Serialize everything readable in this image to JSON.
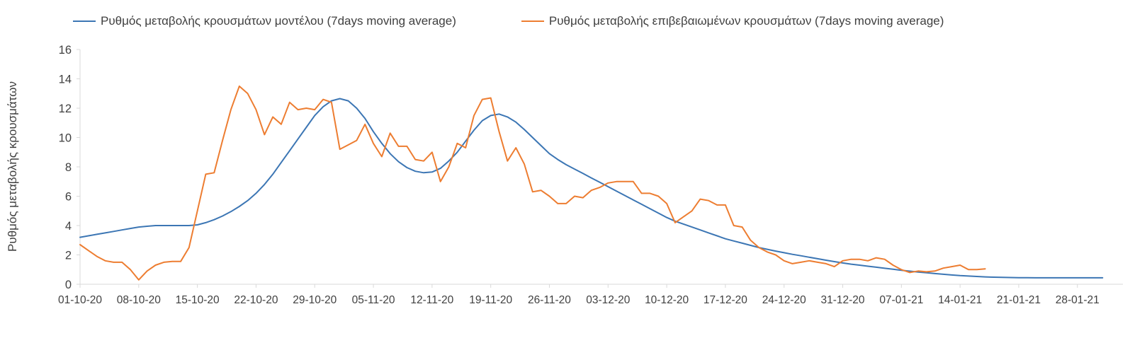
{
  "chart_data": {
    "type": "line",
    "title": "",
    "xlabel": "",
    "ylabel": "Ρυθμός μεταβολής κρουσμάτων",
    "ylim": [
      0,
      16
    ],
    "yticks": [
      0,
      2,
      4,
      6,
      8,
      10,
      12,
      14,
      16
    ],
    "grid": false,
    "legend_position": "top",
    "x_tick_interval_days": 7,
    "x_tick_labels": [
      "01-10-20",
      "08-10-20",
      "15-10-20",
      "22-10-20",
      "29-10-20",
      "05-11-20",
      "12-11-20",
      "19-11-20",
      "26-11-20",
      "03-12-20",
      "10-12-20",
      "17-12-20",
      "24-12-20",
      "31-12-20",
      "07-01-21",
      "14-01-21",
      "21-01-21",
      "28-01-21"
    ],
    "colors": {
      "axis": "#d9d9d9",
      "text": "#404040"
    },
    "series": [
      {
        "key": "model",
        "name": "Ρυθμός μεταβολής κρουσμάτων μοντέλου (7days moving average)",
        "color": "#3c76b4",
        "start_day": 0,
        "values": [
          3.2,
          3.3,
          3.4,
          3.5,
          3.6,
          3.7,
          3.8,
          3.9,
          3.95,
          4.0,
          4.0,
          4.0,
          4.0,
          4.0,
          4.05,
          4.2,
          4.4,
          4.65,
          4.95,
          5.3,
          5.7,
          6.2,
          6.8,
          7.5,
          8.3,
          9.1,
          9.9,
          10.7,
          11.5,
          12.1,
          12.5,
          12.65,
          12.5,
          12.0,
          11.3,
          10.4,
          9.6,
          8.9,
          8.35,
          7.95,
          7.7,
          7.6,
          7.65,
          7.9,
          8.4,
          9.0,
          9.75,
          10.5,
          11.15,
          11.5,
          11.6,
          11.4,
          11.05,
          10.55,
          10.0,
          9.45,
          8.9,
          8.5,
          8.15,
          7.85,
          7.55,
          7.25,
          6.95,
          6.65,
          6.35,
          6.05,
          5.75,
          5.45,
          5.15,
          4.85,
          4.55,
          4.3,
          4.1,
          3.9,
          3.7,
          3.5,
          3.3,
          3.1,
          2.95,
          2.8,
          2.65,
          2.5,
          2.38,
          2.26,
          2.15,
          2.04,
          1.94,
          1.84,
          1.74,
          1.64,
          1.54,
          1.45,
          1.37,
          1.3,
          1.23,
          1.16,
          1.09,
          1.02,
          0.95,
          0.89,
          0.83,
          0.78,
          0.73,
          0.68,
          0.63,
          0.59,
          0.56,
          0.53,
          0.5,
          0.48,
          0.47,
          0.46,
          0.45,
          0.45,
          0.44,
          0.44,
          0.44,
          0.44,
          0.44,
          0.44,
          0.44,
          0.44,
          0.44
        ]
      },
      {
        "key": "confirmed",
        "name": "Ρυθμός μεταβολής επιβεβαιωμένων κρουσμάτων (7days moving average)",
        "color": "#ed7d31",
        "start_day": 0,
        "values": [
          2.7,
          2.3,
          1.9,
          1.6,
          1.5,
          1.5,
          1.0,
          0.3,
          0.9,
          1.3,
          1.5,
          1.55,
          1.55,
          2.5,
          5.0,
          7.5,
          7.6,
          9.8,
          11.9,
          13.5,
          13.0,
          11.9,
          10.2,
          11.4,
          10.9,
          12.4,
          11.9,
          12.0,
          11.9,
          12.6,
          12.4,
          9.2,
          9.5,
          9.8,
          10.9,
          9.6,
          8.7,
          10.3,
          9.4,
          9.4,
          8.5,
          8.4,
          9.0,
          7.0,
          8.0,
          9.6,
          9.3,
          11.5,
          12.6,
          12.7,
          10.4,
          8.4,
          9.3,
          8.2,
          6.3,
          6.4,
          6.0,
          5.5,
          5.5,
          6.0,
          5.9,
          6.4,
          6.6,
          6.9,
          7.0,
          7.0,
          7.0,
          6.2,
          6.2,
          6.0,
          5.5,
          4.2,
          4.6,
          5.0,
          5.8,
          5.7,
          5.4,
          5.4,
          4.0,
          3.9,
          3.0,
          2.5,
          2.2,
          2.0,
          1.6,
          1.4,
          1.5,
          1.6,
          1.5,
          1.4,
          1.2,
          1.6,
          1.7,
          1.7,
          1.6,
          1.8,
          1.7,
          1.3,
          1.0,
          0.8,
          0.9,
          0.85,
          0.9,
          1.1,
          1.2,
          1.3,
          1.0,
          1.0,
          1.05
        ]
      }
    ]
  }
}
